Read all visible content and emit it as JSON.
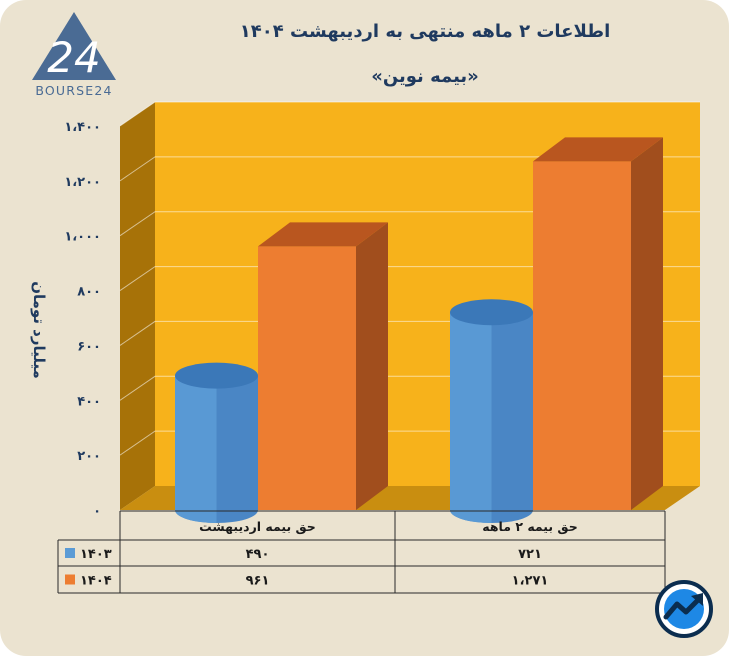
{
  "header": {
    "title": "اطلاعات ۲ ماهه منتهی به اردیبهشت ۱۴۰۴",
    "subtitle": "«بیمه نوین»",
    "logo_text": "BOURSE24",
    "logo_number": "24"
  },
  "colors": {
    "background": "#ebe3d0",
    "plot_background": "#f7b21b",
    "plot_wall": "#a77208",
    "series_1403": "#5b9bd5",
    "series_1404": "#ed7d31",
    "text": "#1f3a5f"
  },
  "chart_data": {
    "type": "bar",
    "shape_1403": "cylinder",
    "shape_1404": "box",
    "grid": true,
    "ylabel": "میلیارد تومان",
    "ylim": [
      0,
      1400
    ],
    "y_ticks": [
      0,
      200,
      400,
      600,
      800,
      1000,
      1200,
      1400
    ],
    "y_tick_labels": [
      "۰",
      "۲۰۰",
      "۴۰۰",
      "۶۰۰",
      "۸۰۰",
      "۱،۰۰۰",
      "۱،۲۰۰",
      "۱،۴۰۰"
    ],
    "categories": [
      "حق بیمه اردیبهشت",
      "حق بیمه ۲ ماهه"
    ],
    "series": [
      {
        "name": "۱۴۰۳",
        "values": [
          490,
          721
        ],
        "value_labels": [
          "۴۹۰",
          "۷۲۱"
        ]
      },
      {
        "name": "۱۴۰۴",
        "values": [
          961,
          1271
        ],
        "value_labels": [
          "۹۶۱",
          "۱،۲۷۱"
        ]
      }
    ]
  }
}
